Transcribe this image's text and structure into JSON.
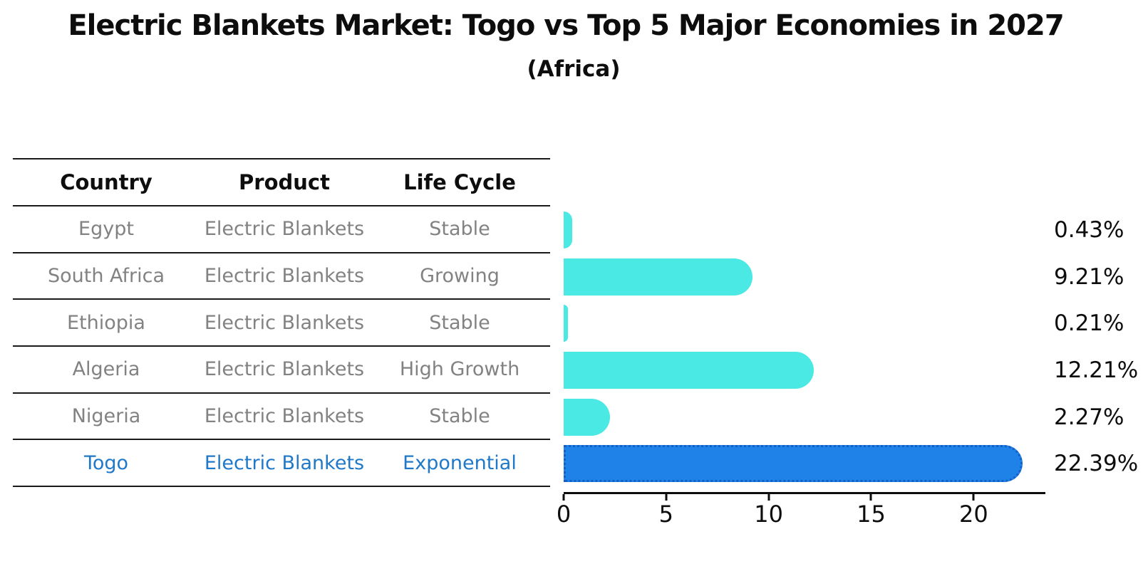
{
  "title": "Electric Blankets Market: Togo vs Top 5 Major Economies in 2027",
  "subtitle": "(Africa)",
  "table": {
    "headers": [
      "Country",
      "Product",
      "Life Cycle"
    ],
    "rows": [
      {
        "country": "Egypt",
        "product": "Electric Blankets",
        "life_cycle": "Stable"
      },
      {
        "country": "South Africa",
        "product": "Electric Blankets",
        "life_cycle": "Growing"
      },
      {
        "country": "Ethiopia",
        "product": "Electric Blankets",
        "life_cycle": "Stable"
      },
      {
        "country": "Algeria",
        "product": "Electric Blankets",
        "life_cycle": "High Growth"
      },
      {
        "country": "Nigeria",
        "product": "Electric Blankets",
        "life_cycle": "Stable"
      },
      {
        "country": "Togo",
        "product": "Electric Blankets",
        "life_cycle": "Exponential"
      }
    ]
  },
  "chart_data": {
    "type": "bar",
    "orientation": "horizontal",
    "title": "Electric Blankets Market: Togo vs Top 5 Major Economies in 2027",
    "subtitle": "(Africa)",
    "categories": [
      "Egypt",
      "South Africa",
      "Ethiopia",
      "Algeria",
      "Nigeria",
      "Togo"
    ],
    "values": [
      0.43,
      9.21,
      0.21,
      12.21,
      2.27,
      22.39
    ],
    "value_labels": [
      "0.43%",
      "9.21%",
      "0.21%",
      "12.21%",
      "2.27%",
      "22.39%"
    ],
    "unit": "%",
    "xlabel": "",
    "ylabel": "",
    "xticks": [
      0,
      5,
      10,
      15,
      20
    ],
    "xlim": [
      0,
      23.5
    ],
    "grid": false,
    "legend": "none",
    "highlight_index": 5,
    "colors": {
      "bar": "#4AE9E3",
      "highlight_bar": "#1E82E8",
      "highlight_border": "#145FC4",
      "highlight_text": "#1F78C8",
      "row_text": "#828282",
      "text": "#0d0d0d"
    }
  }
}
